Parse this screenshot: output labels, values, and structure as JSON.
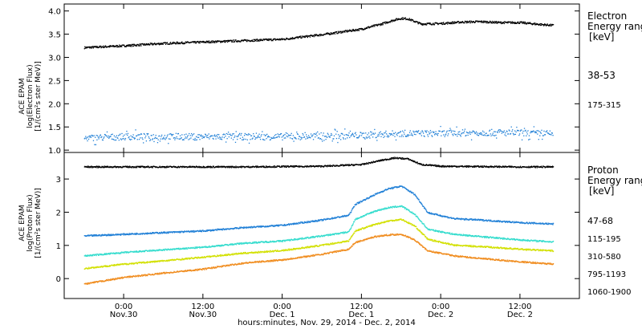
{
  "chart_data": [
    {
      "type": "scatter",
      "panel": "electron",
      "ylabel_lines": [
        "ACE EPAM",
        "log(Electron Flux)",
        "[1/(cm²s ster MeV)]"
      ],
      "ylim": [
        0.95,
        4.15
      ],
      "yticks": [
        "1.0",
        "1.5",
        "2.0",
        "2.5",
        "3.0",
        "3.5",
        "4.0"
      ],
      "legend_title": [
        "Electron",
        "Energy ranges",
        "[keV]"
      ],
      "series": [
        {
          "name": "38-53",
          "color": "#000000",
          "points": [
            [
              -6,
              3.22
            ],
            [
              0,
              3.26
            ],
            [
              6,
              3.31
            ],
            [
              12,
              3.34
            ],
            [
              18,
              3.37
            ],
            [
              24,
              3.4
            ],
            [
              30,
              3.5
            ],
            [
              36,
              3.62
            ],
            [
              39,
              3.73
            ],
            [
              41,
              3.82
            ],
            [
              42,
              3.85
            ],
            [
              43,
              3.84
            ],
            [
              45,
              3.73
            ],
            [
              48,
              3.74
            ],
            [
              51,
              3.77
            ],
            [
              54,
              3.78
            ],
            [
              57,
              3.76
            ],
            [
              60,
              3.76
            ],
            [
              63,
              3.72
            ],
            [
              65,
              3.7
            ]
          ]
        },
        {
          "name": "175-315",
          "color": "#1f7fd6",
          "points": [
            [
              -6,
              1.27
            ],
            [
              0,
              1.3
            ],
            [
              6,
              1.3
            ],
            [
              12,
              1.3
            ],
            [
              18,
              1.3
            ],
            [
              24,
              1.3
            ],
            [
              30,
              1.31
            ],
            [
              36,
              1.33
            ],
            [
              42,
              1.37
            ],
            [
              48,
              1.37
            ],
            [
              54,
              1.39
            ],
            [
              60,
              1.38
            ],
            [
              65,
              1.36
            ]
          ]
        }
      ]
    },
    {
      "type": "scatter",
      "panel": "proton",
      "ylabel_lines": [
        "ACE EPAM",
        "log(Proton Flux)",
        "[1/(cm²s ster MeV)]"
      ],
      "ylim": [
        -0.6,
        3.8
      ],
      "yticks": [
        "0",
        "1",
        "2",
        "3"
      ],
      "legend_title": [
        "Proton",
        "Energy ranges",
        "[keV]"
      ],
      "series": [
        {
          "name": "47-68",
          "color": "#000000",
          "points": [
            [
              -6,
              3.38
            ],
            [
              6,
              3.38
            ],
            [
              18,
              3.38
            ],
            [
              30,
              3.4
            ],
            [
              36,
              3.45
            ],
            [
              39,
              3.58
            ],
            [
              41,
              3.65
            ],
            [
              43,
              3.62
            ],
            [
              45,
              3.45
            ],
            [
              48,
              3.4
            ],
            [
              54,
              3.39
            ],
            [
              60,
              3.38
            ],
            [
              65,
              3.38
            ]
          ]
        },
        {
          "name": "115-195",
          "color": "#1f7fd6",
          "points": [
            [
              -6,
              1.3
            ],
            [
              0,
              1.35
            ],
            [
              6,
              1.4
            ],
            [
              12,
              1.45
            ],
            [
              18,
              1.55
            ],
            [
              24,
              1.62
            ],
            [
              30,
              1.78
            ],
            [
              34,
              1.92
            ],
            [
              35,
              2.25
            ],
            [
              38,
              2.55
            ],
            [
              40,
              2.72
            ],
            [
              42,
              2.8
            ],
            [
              44,
              2.55
            ],
            [
              46,
              2.0
            ],
            [
              50,
              1.82
            ],
            [
              54,
              1.78
            ],
            [
              60,
              1.7
            ],
            [
              65,
              1.66
            ]
          ]
        },
        {
          "name": "310-580",
          "color": "#33dccd",
          "points": [
            [
              -6,
              0.7
            ],
            [
              0,
              0.8
            ],
            [
              6,
              0.88
            ],
            [
              12,
              0.96
            ],
            [
              18,
              1.08
            ],
            [
              24,
              1.15
            ],
            [
              30,
              1.3
            ],
            [
              34,
              1.42
            ],
            [
              35,
              1.8
            ],
            [
              38,
              2.05
            ],
            [
              40,
              2.15
            ],
            [
              42,
              2.2
            ],
            [
              44,
              1.95
            ],
            [
              46,
              1.5
            ],
            [
              50,
              1.35
            ],
            [
              54,
              1.28
            ],
            [
              60,
              1.18
            ],
            [
              65,
              1.12
            ]
          ]
        },
        {
          "name": "795-1193",
          "color": "#d2e000",
          "points": [
            [
              -6,
              0.32
            ],
            [
              0,
              0.45
            ],
            [
              6,
              0.55
            ],
            [
              12,
              0.66
            ],
            [
              18,
              0.78
            ],
            [
              24,
              0.86
            ],
            [
              30,
              1.02
            ],
            [
              34,
              1.15
            ],
            [
              35,
              1.45
            ],
            [
              38,
              1.65
            ],
            [
              40,
              1.75
            ],
            [
              42,
              1.8
            ],
            [
              44,
              1.6
            ],
            [
              46,
              1.2
            ],
            [
              50,
              1.02
            ],
            [
              54,
              0.98
            ],
            [
              60,
              0.9
            ],
            [
              65,
              0.85
            ]
          ]
        },
        {
          "name": "1060-1900",
          "color": "#f08c1e",
          "points": [
            [
              -6,
              -0.15
            ],
            [
              0,
              0.05
            ],
            [
              6,
              0.18
            ],
            [
              12,
              0.3
            ],
            [
              18,
              0.48
            ],
            [
              24,
              0.58
            ],
            [
              30,
              0.75
            ],
            [
              34,
              0.9
            ],
            [
              35,
              1.1
            ],
            [
              38,
              1.28
            ],
            [
              40,
              1.33
            ],
            [
              42,
              1.35
            ],
            [
              44,
              1.18
            ],
            [
              46,
              0.85
            ],
            [
              50,
              0.7
            ],
            [
              54,
              0.62
            ],
            [
              60,
              0.52
            ],
            [
              65,
              0.45
            ]
          ]
        }
      ]
    }
  ],
  "x_axis": {
    "range_hours": [
      -9,
      69
    ],
    "ticks": [
      {
        "h": 0,
        "time": "0:00",
        "date": "Nov.30"
      },
      {
        "h": 12,
        "time": "12:00",
        "date": "Nov.30"
      },
      {
        "h": 24,
        "time": "0:00",
        "date": "Dec. 1"
      },
      {
        "h": 36,
        "time": "12:00",
        "date": "Dec. 1"
      },
      {
        "h": 48,
        "time": "0:00",
        "date": "Dec. 2"
      },
      {
        "h": 60,
        "time": "12:00",
        "date": "Dec. 2"
      }
    ],
    "label": "hours:minutes, Nov. 29, 2014 - Dec. 2, 2014"
  }
}
